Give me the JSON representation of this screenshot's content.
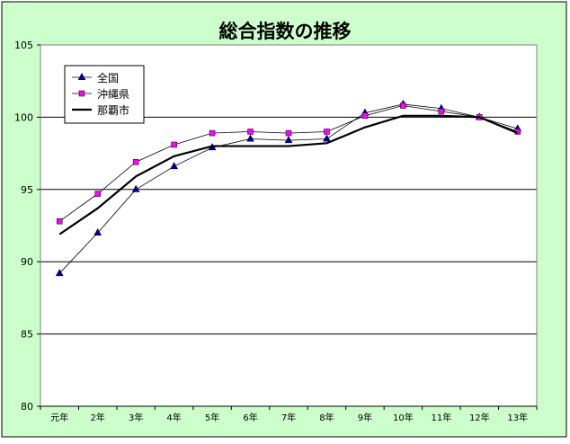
{
  "chart_data": {
    "type": "line",
    "title": "総合指数の推移",
    "categories": [
      "元年",
      "2年",
      "3年",
      "4年",
      "5年",
      "6年",
      "7年",
      "8年",
      "9年",
      "10年",
      "11年",
      "12年",
      "13年"
    ],
    "ylim": [
      80,
      105
    ],
    "yticks": [
      80,
      85,
      90,
      95,
      100,
      105
    ],
    "grid": true,
    "legend_position": "top-left",
    "series": [
      {
        "name": "全国",
        "values": [
          89.2,
          92.0,
          95.0,
          96.6,
          97.9,
          98.5,
          98.4,
          98.5,
          100.3,
          100.9,
          100.6,
          100.0,
          99.2
        ],
        "color": "#000080",
        "marker": "triangle"
      },
      {
        "name": "沖縄県",
        "values": [
          92.8,
          94.7,
          96.9,
          98.1,
          98.9,
          99.0,
          98.9,
          99.0,
          100.1,
          100.8,
          100.4,
          100.0,
          99.0
        ],
        "color": "#ff00ff",
        "marker": "square"
      },
      {
        "name": "那覇市",
        "values": [
          91.9,
          93.7,
          95.9,
          97.3,
          98.0,
          98.0,
          98.0,
          98.2,
          99.3,
          100.1,
          100.1,
          100.0,
          98.9
        ],
        "color": "#000000",
        "marker": "none"
      }
    ]
  },
  "colors": {
    "frame_bg": "#ccffcc",
    "plot_bg": "#ffffff",
    "grid": "#000000"
  }
}
